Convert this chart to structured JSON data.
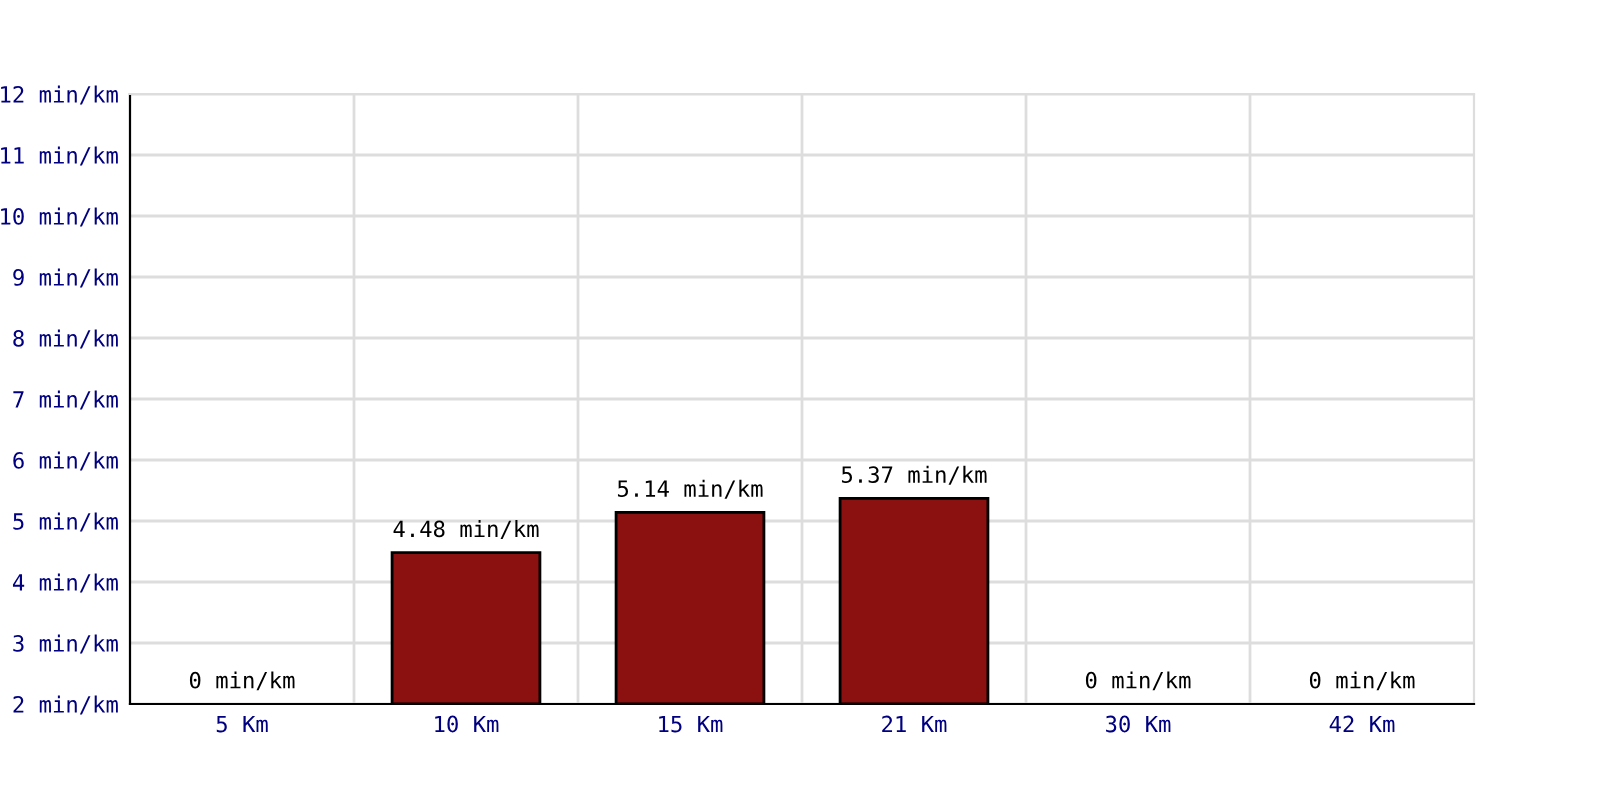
{
  "chart_data": {
    "type": "bar",
    "categories": [
      "5 Km",
      "10 Km",
      "15 Km",
      "21 Km",
      "30 Km",
      "42 Km"
    ],
    "values": [
      null,
      4.48,
      5.14,
      5.37,
      null,
      null
    ],
    "value_labels": [
      "0 min/km",
      "4.48 min/km",
      "5.14 min/km",
      "5.37 min/km",
      "0 min/km",
      "0 min/km"
    ],
    "color": "#8b1010",
    "ylim": [
      2,
      12
    ],
    "yticks": [
      {
        "value": 2,
        "label": "2 min/km"
      },
      {
        "value": 3,
        "label": "3 min/km"
      },
      {
        "value": 4,
        "label": "4 min/km"
      },
      {
        "value": 5,
        "label": "5 min/km"
      },
      {
        "value": 6,
        "label": "6 min/km"
      },
      {
        "value": 7,
        "label": "7 min/km"
      },
      {
        "value": 8,
        "label": "8 min/km"
      },
      {
        "value": 9,
        "label": "9 min/km"
      },
      {
        "value": 10,
        "label": "10 min/km"
      },
      {
        "value": 11,
        "label": "11 min/km"
      },
      {
        "value": 12,
        "label": "12 min/km"
      }
    ],
    "grid": true
  }
}
